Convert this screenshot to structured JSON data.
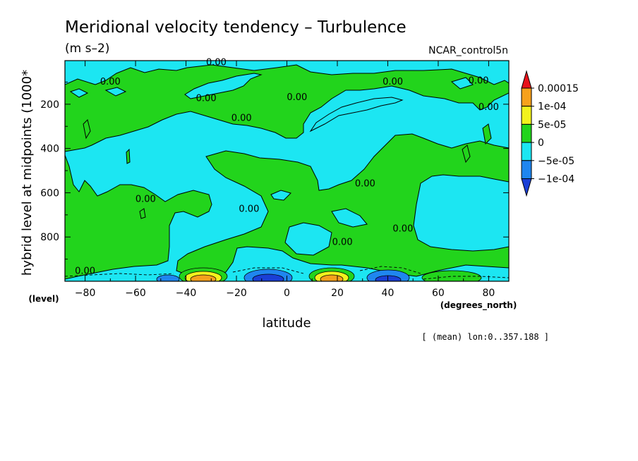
{
  "chart_data": {
    "type": "heatmap",
    "title": "Meridional velocity tendency – Turbulence",
    "subtitle": "(m s–2)",
    "run_label": "NCAR_control5n",
    "xlabel": "latitude",
    "xunit": "(degrees_north)",
    "ylabel": "hybrid level at midpoints (1000*",
    "yunit": "(level)",
    "x_ticks": [
      -80,
      -60,
      -40,
      -20,
      0,
      20,
      40,
      60,
      80
    ],
    "y_ticks": [
      200,
      400,
      600,
      800
    ],
    "xlim": [
      -88,
      88
    ],
    "ylim": [
      1000,
      3
    ],
    "footnote": "[ (mean) lon:0..357.188 ]",
    "contour_label": "0.00",
    "contour_labels": [
      {
        "lat": -70,
        "lev": 95
      },
      {
        "lat": -28,
        "lev": 8
      },
      {
        "lat": -32,
        "lev": 170
      },
      {
        "lat": -18,
        "lev": 260
      },
      {
        "lat": 4,
        "lev": 165
      },
      {
        "lat": 42,
        "lev": 95
      },
      {
        "lat": 76,
        "lev": 90
      },
      {
        "lat": 80,
        "lev": 210
      },
      {
        "lat": 31,
        "lev": 555
      },
      {
        "lat": -56,
        "lev": 625
      },
      {
        "lat": -15,
        "lev": 670
      },
      {
        "lat": 46,
        "lev": 760
      },
      {
        "lat": 22,
        "lev": 820
      },
      {
        "lat": -80,
        "lev": 950
      }
    ],
    "colorbar": {
      "labels": [
        "0.00015",
        "1e-04",
        "5e-05",
        "0",
        "−5e-05",
        "−1e-04"
      ],
      "colors": [
        "#e8121a",
        "#f7a11c",
        "#f2f21d",
        "#22d41c",
        "#1ce6f2",
        "#1f86ef",
        "#1a3fd6"
      ]
    },
    "colors": {
      "positive": "#22d41c",
      "negative": "#1ce6f2",
      "strong_negative": "#1f86ef",
      "deep_negative": "#1a3fd6",
      "weak_positive": "#f2f21d",
      "mid_positive": "#f7a11c"
    }
  }
}
